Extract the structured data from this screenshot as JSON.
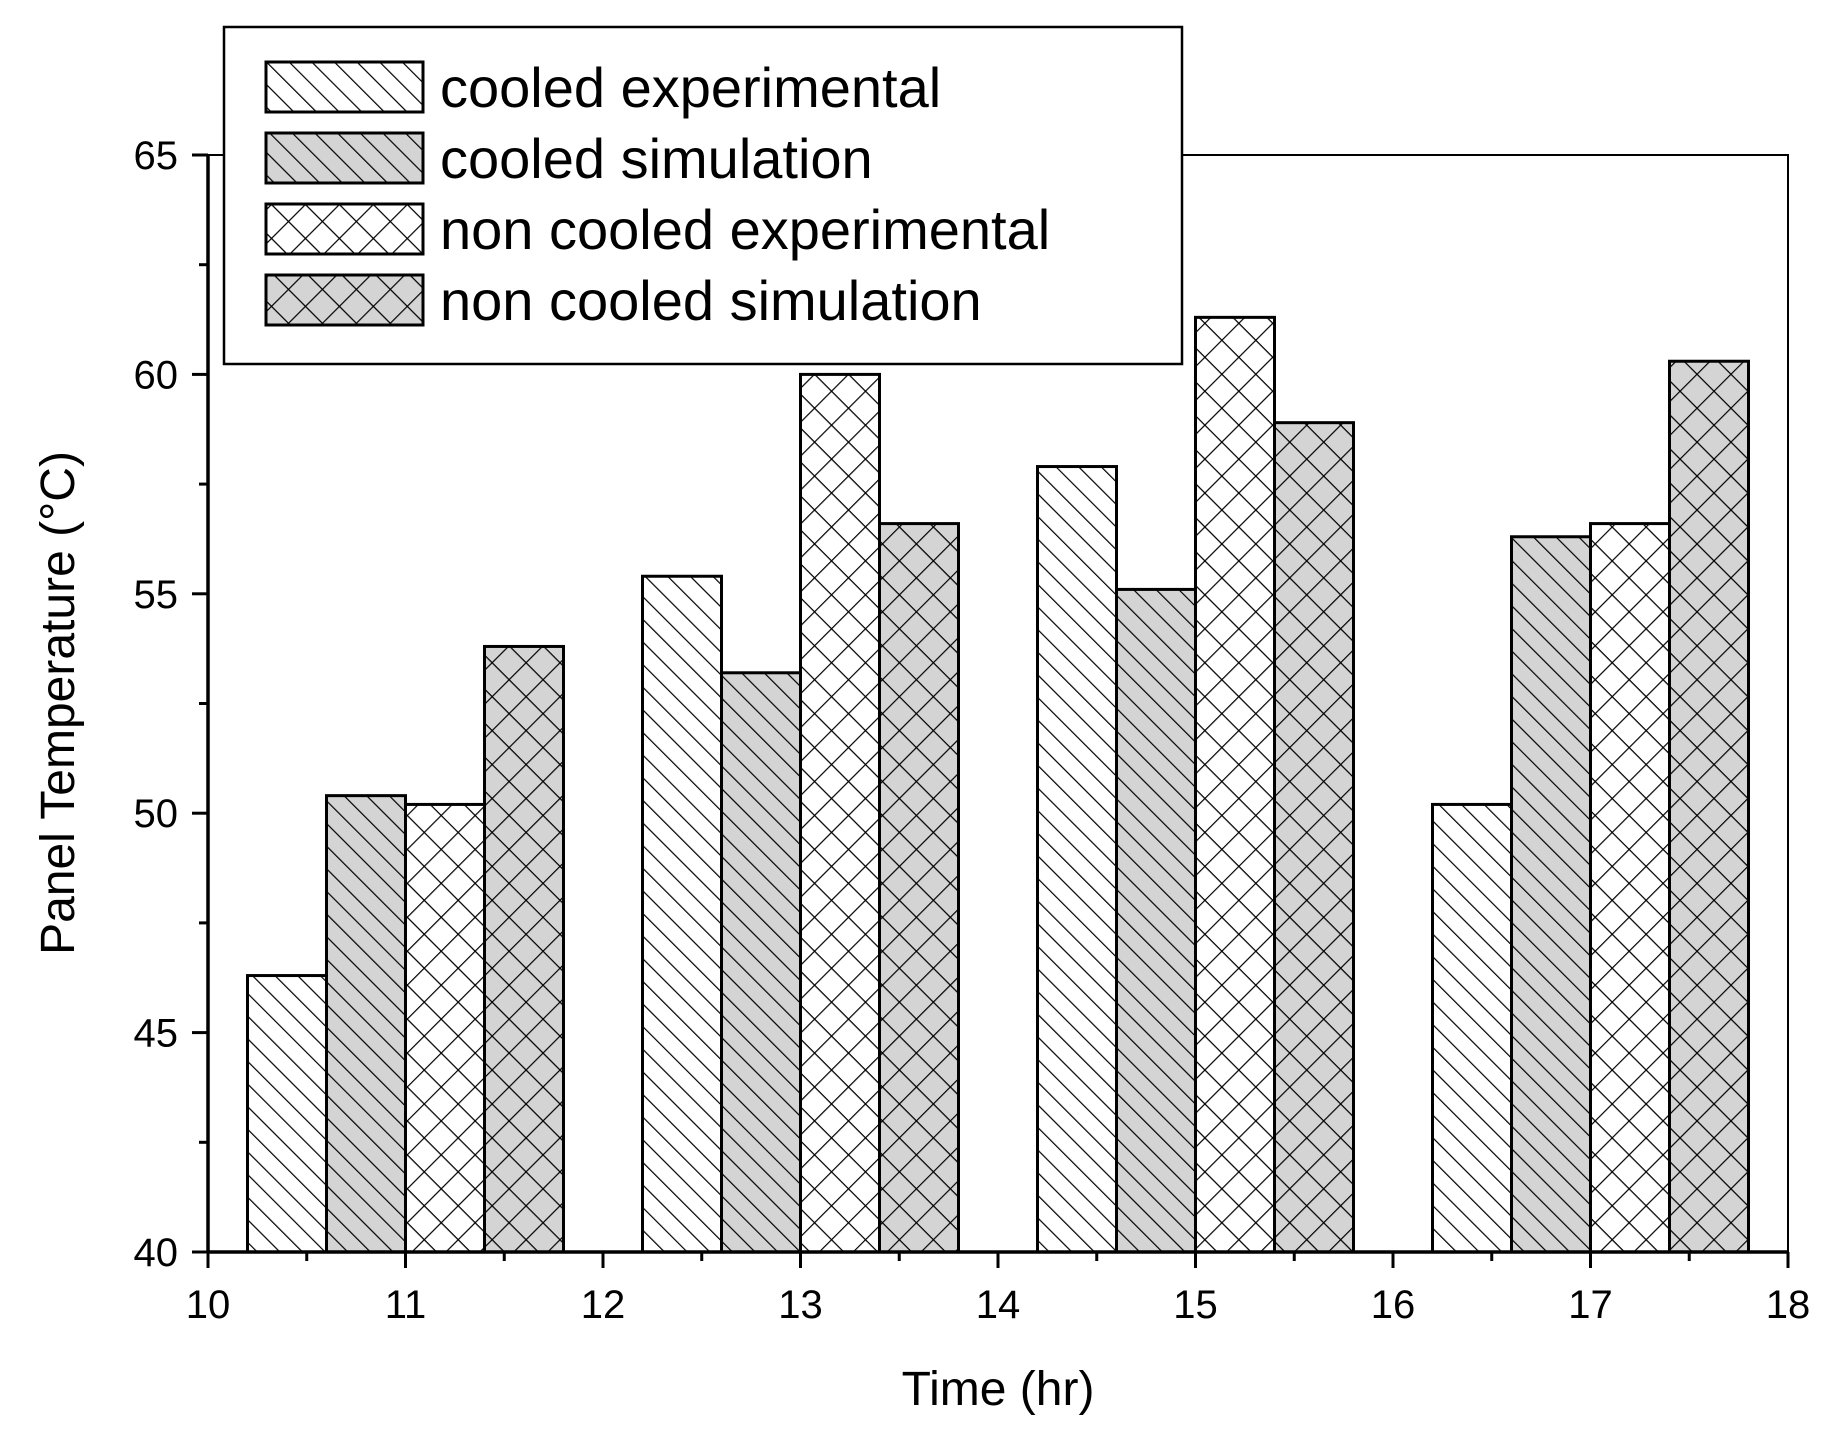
{
  "chart_data": {
    "type": "bar",
    "title": "",
    "xlabel": "Time (hr)",
    "ylabel": "Panel Temperature (°C)",
    "xlim": [
      10,
      18
    ],
    "ylim": [
      40,
      65
    ],
    "x_ticks": [
      "10",
      "11",
      "12",
      "13",
      "14",
      "15",
      "16",
      "17",
      "18"
    ],
    "y_ticks": [
      "40",
      "45",
      "50",
      "55",
      "60",
      "65"
    ],
    "group_centers": [
      11,
      13,
      15,
      17
    ],
    "bar_width": 0.4,
    "legend_position": "top-left",
    "series": [
      {
        "name": "cooled experimental",
        "pattern": "diag",
        "fill": "#ffffff",
        "values": [
          46.3,
          55.4,
          57.9,
          50.2
        ]
      },
      {
        "name": "cooled simulation",
        "pattern": "diag",
        "fill": "#d4d4d4",
        "values": [
          50.4,
          53.2,
          55.1,
          56.3
        ]
      },
      {
        "name": "non cooled experimental",
        "pattern": "cross",
        "fill": "#ffffff",
        "values": [
          50.2,
          60.0,
          61.3,
          56.6
        ]
      },
      {
        "name": "non cooled simulation",
        "pattern": "cross",
        "fill": "#d4d4d4",
        "values": [
          53.8,
          56.6,
          58.9,
          60.3
        ]
      }
    ]
  }
}
